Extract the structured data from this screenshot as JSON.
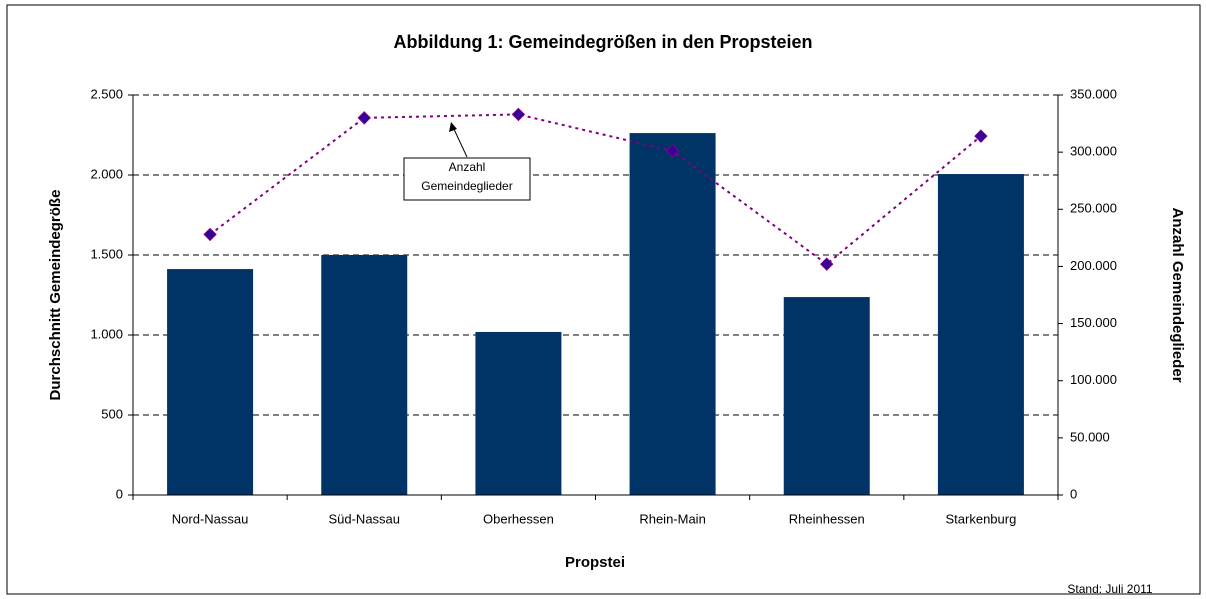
{
  "chart_data": {
    "type": "bar_line",
    "title": "Abbildung 1: Gemeindegrößen in den Propsteien",
    "x_label": "Propstei",
    "y_label": "Durchschnitt Gemeindegröße",
    "y2_label": "Anzahl Gemeindeglieder",
    "annotation": [
      "Anzahl",
      "Gemeindeglieder"
    ],
    "footnote": "Stand: Juli 2011",
    "categories": [
      "Nord-Nassau",
      "Süd-Nassau",
      "Oberhessen",
      "Rhein-Main",
      "Rheinhessen",
      "Starkenburg"
    ],
    "series": [
      {
        "type": "bar",
        "color": "#003366",
        "values": [
          1412,
          1500,
          1019,
          2262,
          1237,
          2006
        ]
      },
      {
        "type": "line",
        "axis": "y2",
        "color": "#800080",
        "marker_color": "#330099",
        "values": [
          228000,
          330000,
          333000,
          301000,
          202000,
          314000
        ]
      }
    ],
    "ylim": [
      0,
      2500
    ],
    "yticks": [
      0,
      500,
      {
        "value": 1000,
        "label": "1.000"
      },
      {
        "value": 1500,
        "label": "1.500"
      },
      {
        "value": 2000,
        "label": "2.000"
      },
      {
        "value": 2500,
        "label": "2.500"
      }
    ],
    "y2lim": [
      0,
      350000
    ],
    "y2ticks": [
      0,
      {
        "value": 50000,
        "label": "50.000"
      },
      {
        "value": 100000,
        "label": "100.000"
      },
      {
        "value": 150000,
        "label": "150.000"
      },
      {
        "value": 200000,
        "label": "200.000"
      },
      {
        "value": 250000,
        "label": "250.000"
      },
      {
        "value": 300000,
        "label": "300.000"
      },
      {
        "value": 350000,
        "label": "350.000"
      }
    ],
    "grid": true
  }
}
